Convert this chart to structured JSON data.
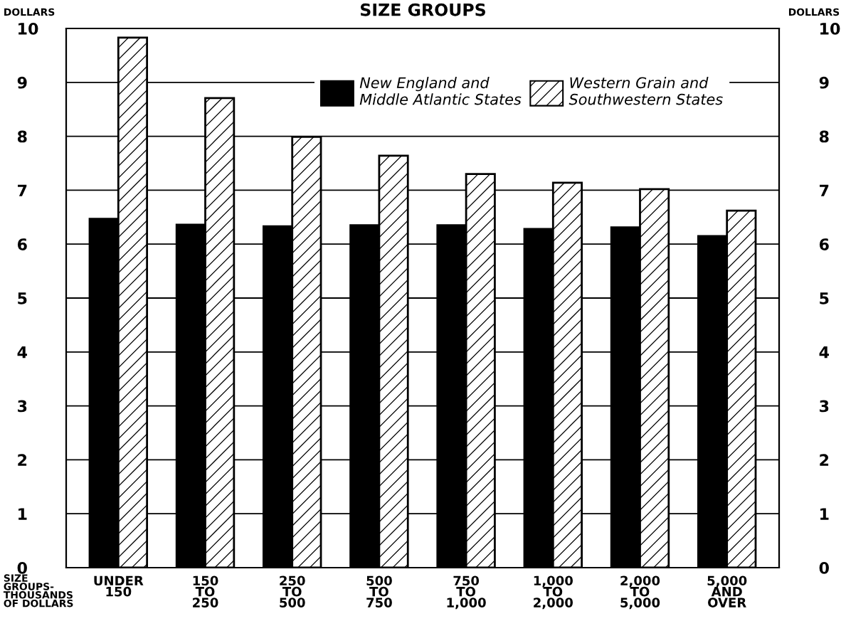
{
  "chart_data": {
    "type": "bar",
    "title": "SIZE GROUPS",
    "xlabel": "SIZE\nGROUPS-\nTHOUSANDS\nOF DOLLARS",
    "ylabel": "DOLLARS",
    "y2label": "DOLLARS",
    "categories": [
      "UNDER\n150",
      "150\nTO\n250",
      "250\nTO\n500",
      "500\nTO\n750",
      "750\nTO\n1,000",
      "1,000\nTO\n2,000",
      "2,000\nTO\n5,000",
      "5,000\nAND\nOVER"
    ],
    "series": [
      {
        "name": "New England and\nMiddle Atlantic States",
        "color": "#000000",
        "values": [
          6.47,
          6.36,
          6.33,
          6.35,
          6.35,
          6.28,
          6.31,
          6.15
        ]
      },
      {
        "name": "Western Grain and\nSouthwestern States",
        "color": "#000000",
        "values": [
          9.83,
          8.71,
          7.99,
          7.64,
          7.3,
          7.14,
          7.02,
          6.62
        ]
      }
    ],
    "ylim": [
      0,
      10
    ],
    "yticks": [
      0,
      1,
      2,
      3,
      4,
      5,
      6,
      7,
      8,
      9,
      10
    ],
    "y2lim": [
      0,
      10
    ],
    "y2ticks": [
      0,
      1,
      2,
      3,
      4,
      5,
      6,
      7,
      8,
      9,
      10
    ],
    "grid": "y",
    "legend": "top right"
  }
}
